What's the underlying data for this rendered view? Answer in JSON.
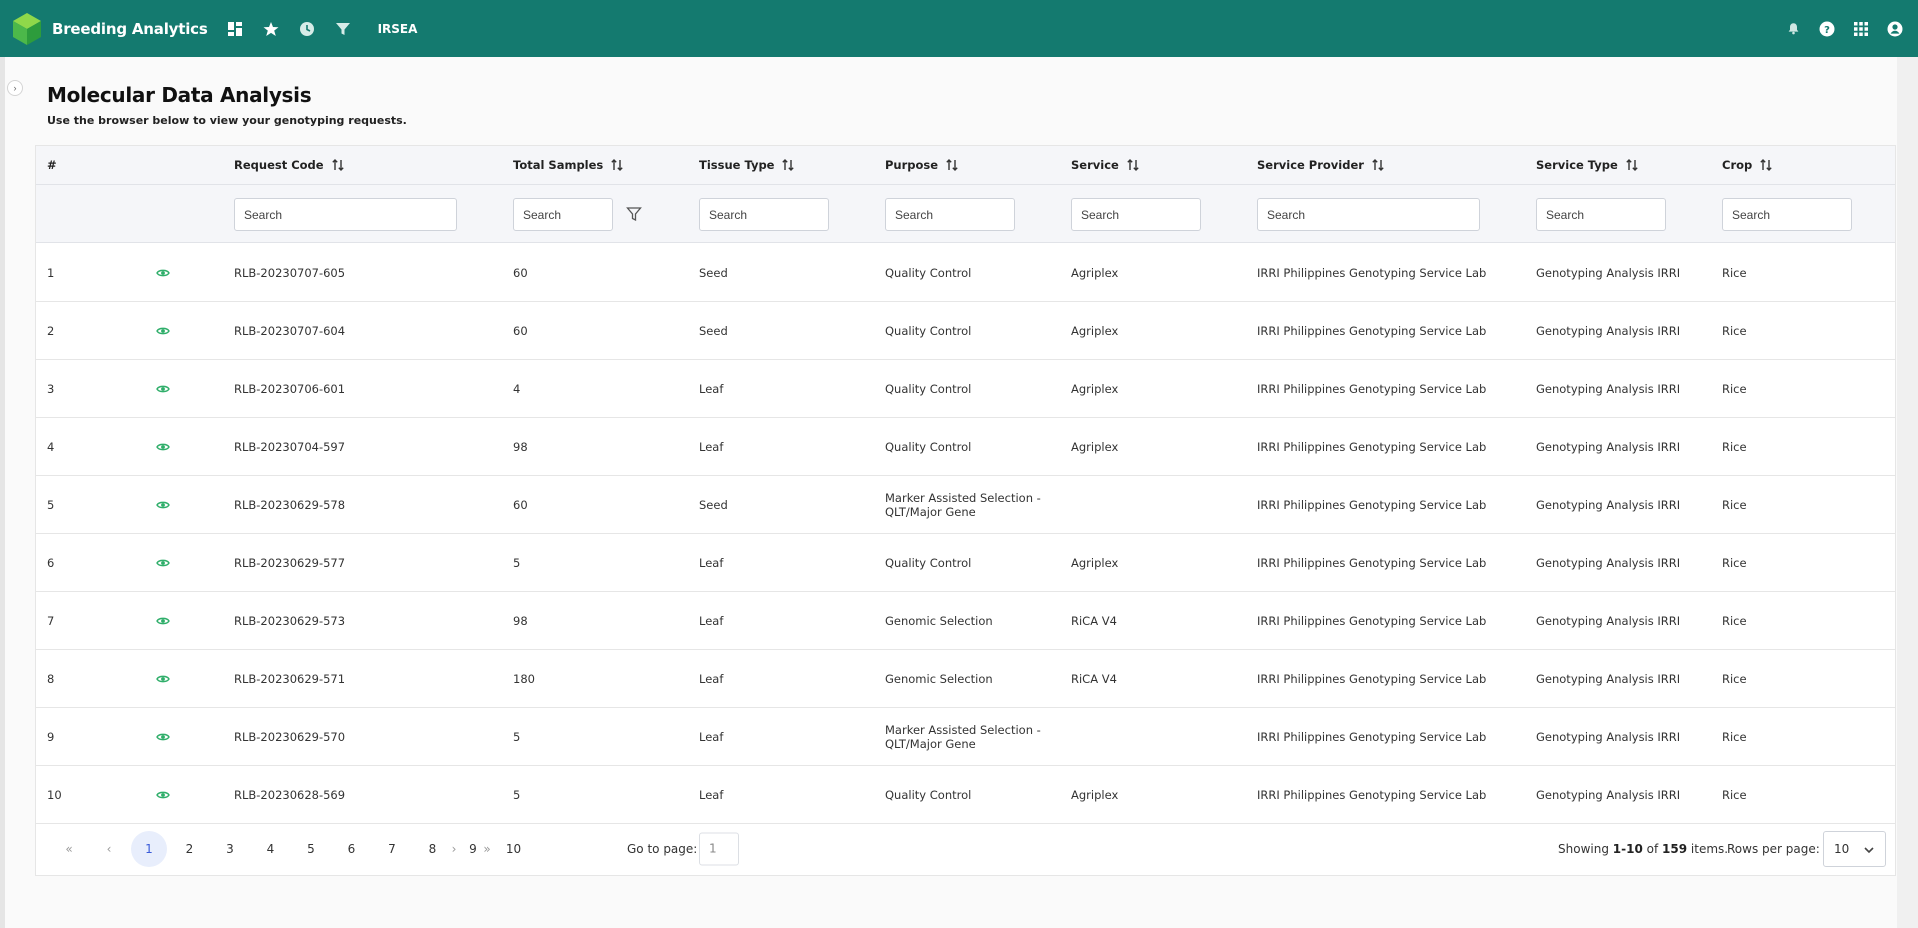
{
  "app": {
    "title": "Breeding Analytics",
    "org": "IRSEA",
    "brand_color": "#147a6f",
    "accent_green": "#2fae6a",
    "nav_icons": [
      "dashboard-icon",
      "star-icon",
      "clock-icon",
      "filter-icon"
    ],
    "right_icons": [
      "bell-icon",
      "help-icon",
      "apps-grid-icon",
      "account-icon"
    ]
  },
  "page": {
    "title": "Molecular Data Analysis",
    "subtitle": "Use the browser below to view your genotyping requests."
  },
  "table": {
    "columns": [
      {
        "key": "index",
        "label": "#",
        "sortable": false
      },
      {
        "key": "view",
        "label": "",
        "sortable": false
      },
      {
        "key": "request_code",
        "label": "Request Code",
        "sortable": true,
        "placeholder": "Search"
      },
      {
        "key": "total_samples",
        "label": "Total Samples",
        "sortable": true,
        "placeholder": "Search"
      },
      {
        "key": "tissue_type",
        "label": "Tissue Type",
        "sortable": true,
        "placeholder": "Search"
      },
      {
        "key": "purpose",
        "label": "Purpose",
        "sortable": true,
        "placeholder": "Search"
      },
      {
        "key": "service",
        "label": "Service",
        "sortable": true,
        "placeholder": "Search"
      },
      {
        "key": "service_provider",
        "label": "Service Provider",
        "sortable": true,
        "placeholder": "Search"
      },
      {
        "key": "service_type",
        "label": "Service Type",
        "sortable": true,
        "placeholder": "Search"
      },
      {
        "key": "crop",
        "label": "Crop",
        "sortable": true,
        "placeholder": "Search"
      }
    ],
    "rows": [
      {
        "index": "1",
        "request_code": "RLB-20230707-605",
        "total_samples": "60",
        "tissue_type": "Seed",
        "purpose": "Quality Control",
        "service": "Agriplex",
        "service_provider": "IRRI Philippines Genotyping Service Lab",
        "service_type": "Genotyping Analysis IRRI",
        "crop": "Rice"
      },
      {
        "index": "2",
        "request_code": "RLB-20230707-604",
        "total_samples": "60",
        "tissue_type": "Seed",
        "purpose": "Quality Control",
        "service": "Agriplex",
        "service_provider": "IRRI Philippines Genotyping Service Lab",
        "service_type": "Genotyping Analysis IRRI",
        "crop": "Rice"
      },
      {
        "index": "3",
        "request_code": "RLB-20230706-601",
        "total_samples": "4",
        "tissue_type": "Leaf",
        "purpose": "Quality Control",
        "service": "Agriplex",
        "service_provider": "IRRI Philippines Genotyping Service Lab",
        "service_type": "Genotyping Analysis IRRI",
        "crop": "Rice"
      },
      {
        "index": "4",
        "request_code": "RLB-20230704-597",
        "total_samples": "98",
        "tissue_type": "Leaf",
        "purpose": "Quality Control",
        "service": "Agriplex",
        "service_provider": "IRRI Philippines Genotyping Service Lab",
        "service_type": "Genotyping Analysis IRRI",
        "crop": "Rice"
      },
      {
        "index": "5",
        "request_code": "RLB-20230629-578",
        "total_samples": "60",
        "tissue_type": "Seed",
        "purpose": "Marker Assisted Selection - QLT/Major Gene",
        "service": "",
        "service_provider": "IRRI Philippines Genotyping Service Lab",
        "service_type": "Genotyping Analysis IRRI",
        "crop": "Rice"
      },
      {
        "index": "6",
        "request_code": "RLB-20230629-577",
        "total_samples": "5",
        "tissue_type": "Leaf",
        "purpose": "Quality Control",
        "service": "Agriplex",
        "service_provider": "IRRI Philippines Genotyping Service Lab",
        "service_type": "Genotyping Analysis IRRI",
        "crop": "Rice"
      },
      {
        "index": "7",
        "request_code": "RLB-20230629-573",
        "total_samples": "98",
        "tissue_type": "Leaf",
        "purpose": "Genomic Selection",
        "service": "RiCA V4",
        "service_provider": "IRRI Philippines Genotyping Service Lab",
        "service_type": "Genotyping Analysis IRRI",
        "crop": "Rice"
      },
      {
        "index": "8",
        "request_code": "RLB-20230629-571",
        "total_samples": "180",
        "tissue_type": "Leaf",
        "purpose": "Genomic Selection",
        "service": "RiCA V4",
        "service_provider": "IRRI Philippines Genotyping Service Lab",
        "service_type": "Genotyping Analysis IRRI",
        "crop": "Rice"
      },
      {
        "index": "9",
        "request_code": "RLB-20230629-570",
        "total_samples": "5",
        "tissue_type": "Leaf",
        "purpose": "Marker Assisted Selection - QLT/Major Gene",
        "service": "",
        "service_provider": "IRRI Philippines Genotyping Service Lab",
        "service_type": "Genotyping Analysis IRRI",
        "crop": "Rice"
      },
      {
        "index": "10",
        "request_code": "RLB-20230628-569",
        "total_samples": "5",
        "tissue_type": "Leaf",
        "purpose": "Quality Control",
        "service": "Agriplex",
        "service_provider": "IRRI Philippines Genotyping Service Lab",
        "service_type": "Genotyping Analysis IRRI",
        "crop": "Rice"
      }
    ]
  },
  "pagination": {
    "first": "«",
    "prev": "‹",
    "next": "›",
    "last": "»",
    "pages": [
      "1",
      "2",
      "3",
      "4",
      "5",
      "6",
      "7",
      "8",
      "9",
      "10"
    ],
    "current_page": "1",
    "goto_label": "Go to page:",
    "goto_value": "1",
    "showing_prefix": "Showing",
    "showing_range": "1-10",
    "showing_of": "of",
    "showing_total": "159",
    "showing_suffix": "items.",
    "rows_per_page_label": "Rows per page:",
    "rows_per_page": "10"
  }
}
